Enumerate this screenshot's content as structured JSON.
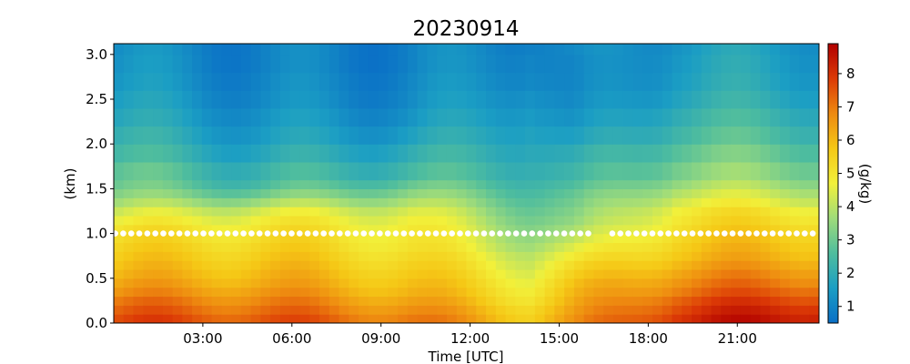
{
  "chart_data": {
    "type": "heatmap",
    "title": "20230914",
    "xlabel": "Time [UTC]",
    "ylabel": "(km)",
    "colorbar_label": "(g/kg)",
    "x_range_hours": [
      0,
      23.75
    ],
    "ylim_km": [
      0,
      3.12
    ],
    "color_range": [
      0.5,
      8.9
    ],
    "colormap": [
      "#0a6fc6",
      "#1b9ec4",
      "#4fbd9e",
      "#9fdc7a",
      "#f2f03a",
      "#f5c816",
      "#ee8a10",
      "#dc3a06",
      "#b10000"
    ],
    "x_ticks": [
      {
        "hour": 3,
        "label": "03:00"
      },
      {
        "hour": 6,
        "label": "06:00"
      },
      {
        "hour": 9,
        "label": "09:00"
      },
      {
        "hour": 12,
        "label": "12:00"
      },
      {
        "hour": 15,
        "label": "15:00"
      },
      {
        "hour": 18,
        "label": "18:00"
      },
      {
        "hour": 21,
        "label": "21:00"
      }
    ],
    "y_ticks": [
      {
        "km": 0.0,
        "label": "0.0"
      },
      {
        "km": 0.5,
        "label": "0.5"
      },
      {
        "km": 1.0,
        "label": "1.0"
      },
      {
        "km": 1.5,
        "label": "1.5"
      },
      {
        "km": 2.0,
        "label": "2.0"
      },
      {
        "km": 2.5,
        "label": "2.5"
      },
      {
        "km": 3.0,
        "label": "3.0"
      }
    ],
    "colorbar_ticks": [
      {
        "value": 1,
        "label": "1"
      },
      {
        "value": 2,
        "label": "2"
      },
      {
        "value": 3,
        "label": "3"
      },
      {
        "value": 4,
        "label": "4"
      },
      {
        "value": 5,
        "label": "5"
      },
      {
        "value": 6,
        "label": "6"
      },
      {
        "value": 7,
        "label": "7"
      },
      {
        "value": 8,
        "label": "8"
      }
    ],
    "marker_series": {
      "height_km": 1.0,
      "color": "#ffffff",
      "gap_hours": [
        16.2,
        16.6
      ]
    },
    "time_columns": 72,
    "height_levels_km": [
      0.0,
      0.1,
      0.2,
      0.3,
      0.4,
      0.5,
      0.6,
      0.7,
      0.8,
      0.9,
      1.0,
      1.1,
      1.2,
      1.3,
      1.4,
      1.5,
      1.6,
      1.8,
      2.0,
      2.2,
      2.4,
      2.6,
      2.8,
      3.0
    ],
    "key_profiles": [
      {
        "hour": 0.0,
        "values": [
          7.6,
          7.3,
          7.0,
          6.6,
          6.3,
          6.0,
          5.8,
          5.6,
          5.4,
          5.2,
          5.0,
          4.6,
          4.2,
          3.7,
          3.3,
          3.0,
          2.8,
          2.4,
          2.1,
          1.8,
          1.6,
          1.4,
          1.3,
          1.2
        ]
      },
      {
        "hour": 5.0,
        "values": [
          7.5,
          7.2,
          6.9,
          6.6,
          6.3,
          6.1,
          5.9,
          5.7,
          5.5,
          5.3,
          5.1,
          4.8,
          4.4,
          3.7,
          3.0,
          2.5,
          2.2,
          1.8,
          1.5,
          1.3,
          1.1,
          1.0,
          0.9,
          0.9
        ]
      },
      {
        "hour": 10.0,
        "values": [
          7.0,
          6.7,
          6.4,
          6.1,
          5.9,
          5.7,
          5.5,
          5.3,
          5.1,
          5.0,
          4.9,
          4.7,
          4.4,
          3.9,
          3.4,
          2.9,
          2.4,
          2.0,
          1.6,
          1.3,
          1.1,
          1.0,
          0.9,
          0.9
        ]
      },
      {
        "hour": 14.0,
        "values": [
          5.8,
          5.6,
          5.3,
          5.1,
          4.9,
          4.7,
          4.5,
          4.3,
          4.0,
          3.8,
          3.6,
          3.4,
          3.2,
          3.0,
          2.8,
          2.6,
          2.4,
          2.2,
          2.0,
          1.8,
          1.6,
          1.4,
          1.3,
          1.2
        ]
      },
      {
        "hour": 15.5,
        "values": [
          6.4,
          6.2,
          6.0,
          5.8,
          5.6,
          5.3,
          5.0,
          4.6,
          4.2,
          3.8,
          3.5,
          3.2,
          3.0,
          2.8,
          2.6,
          2.3,
          2.0,
          1.7,
          1.3,
          1.0,
          0.8,
          0.7,
          0.7,
          0.8
        ]
      },
      {
        "hour": 19.0,
        "values": [
          8.2,
          7.9,
          7.6,
          7.2,
          6.9,
          6.6,
          6.3,
          6.0,
          5.8,
          5.6,
          5.4,
          5.2,
          5.0,
          4.6,
          4.2,
          3.8,
          3.4,
          3.0,
          2.6,
          2.3,
          2.0,
          1.8,
          1.7,
          1.6
        ]
      },
      {
        "hour": 23.75,
        "values": [
          8.6,
          8.3,
          7.9,
          7.5,
          7.1,
          6.8,
          6.5,
          6.2,
          6.0,
          5.8,
          5.6,
          5.3,
          5.0,
          4.5,
          4.1,
          3.7,
          3.3,
          2.9,
          2.5,
          2.2,
          1.9,
          1.7,
          1.6,
          1.5
        ]
      }
    ]
  }
}
